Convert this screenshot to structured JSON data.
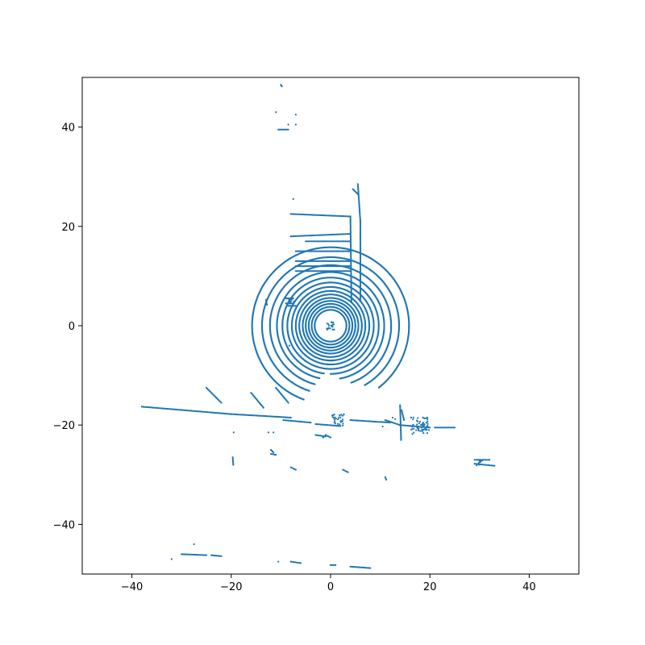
{
  "chart_data": {
    "type": "scatter",
    "title": "",
    "xlabel": "",
    "ylabel": "",
    "xlim": [
      -50,
      50
    ],
    "ylim": [
      -50,
      50
    ],
    "x_ticks": [
      -40,
      -20,
      0,
      20,
      40
    ],
    "y_ticks": [
      -40,
      -20,
      0,
      20,
      40
    ],
    "x_tick_labels": [
      "−40",
      "−20",
      "0",
      "20",
      "40"
    ],
    "y_tick_labels": [
      "−40",
      "−20",
      "0",
      "20",
      "40"
    ],
    "grid": false,
    "legend": "none",
    "point_color": "#1f77b4",
    "rings": [
      {
        "cx": 0,
        "cy": 0,
        "r": 3.2,
        "start": 0,
        "end": 360
      },
      {
        "cx": 0,
        "cy": 0,
        "r": 3.8,
        "start": 0,
        "end": 360
      },
      {
        "cx": 0,
        "cy": 0,
        "r": 4.4,
        "start": 0,
        "end": 360
      },
      {
        "cx": 0,
        "cy": 0,
        "r": 5.0,
        "start": 0,
        "end": 360
      },
      {
        "cx": 0,
        "cy": 0,
        "r": 5.6,
        "start": 0,
        "end": 360
      },
      {
        "cx": 0,
        "cy": 0,
        "r": 6.3,
        "start": 0,
        "end": 360
      },
      {
        "cx": 0,
        "cy": 0,
        "r": 7.0,
        "start": -95,
        "end": 275
      },
      {
        "cx": 0,
        "cy": 0,
        "r": 7.8,
        "start": -95,
        "end": 270
      },
      {
        "cx": 0,
        "cy": 0,
        "r": 8.7,
        "start": -95,
        "end": 265
      },
      {
        "cx": 0,
        "cy": 0,
        "r": 9.7,
        "start": -90,
        "end": 262
      },
      {
        "cx": 0,
        "cy": 0,
        "r": 10.8,
        "start": -80,
        "end": 258
      },
      {
        "cx": 0,
        "cy": 0,
        "r": 12.2,
        "start": -70,
        "end": 255
      },
      {
        "cx": 0,
        "cy": 0,
        "r": 13.8,
        "start": -60,
        "end": 252
      },
      {
        "cx": 0,
        "cy": 0,
        "r": 15.8,
        "start": -52,
        "end": 250
      }
    ],
    "segments": [
      [
        -38,
        -16.3,
        -20,
        -17.8
      ],
      [
        -20,
        -17.8,
        -13,
        -18.2
      ],
      [
        -13,
        -18.2,
        -8,
        -18.5
      ],
      [
        -25,
        -12.5,
        -22,
        -15.5
      ],
      [
        -16,
        -13.5,
        -13.5,
        -16.5
      ],
      [
        -11,
        -12.5,
        -8.5,
        -15.5
      ],
      [
        -9.5,
        -19,
        -4,
        -19.5
      ],
      [
        -3,
        -19.8,
        2,
        -20.2
      ],
      [
        4,
        -19,
        12,
        -19.5
      ],
      [
        11,
        -19,
        14,
        -20
      ],
      [
        14,
        -20,
        20,
        -20.5
      ],
      [
        21,
        -20.5,
        25,
        -20.5
      ],
      [
        14,
        -16,
        14.2,
        -23
      ],
      [
        14.3,
        -17,
        14.8,
        -19
      ],
      [
        -8,
        22.5,
        4,
        22
      ],
      [
        -8,
        18,
        4,
        18.5
      ],
      [
        -5,
        17,
        4,
        17
      ],
      [
        -7,
        15,
        4,
        15
      ],
      [
        -7,
        13,
        4,
        13
      ],
      [
        -7,
        12,
        4,
        12
      ],
      [
        -7,
        11,
        4,
        11
      ],
      [
        4,
        22,
        4.2,
        5
      ],
      [
        5.5,
        28.5,
        6,
        21
      ],
      [
        6,
        21,
        6,
        5
      ],
      [
        4.5,
        27.5,
        5.5,
        26.5
      ],
      [
        -9,
        5.5,
        -7.5,
        5.5
      ],
      [
        -9,
        4.5,
        -7.5,
        4.5
      ],
      [
        -8.5,
        4,
        -7,
        4
      ],
      [
        -13,
        5.2,
        -12.8,
        4.2
      ],
      [
        -10.5,
        39.5,
        -8.5,
        39.5
      ],
      [
        -10,
        48.5,
        -9.8,
        48.2
      ],
      [
        -1,
        -22,
        0,
        -22.5
      ],
      [
        -3,
        -22,
        -1,
        -22.3
      ],
      [
        -19.7,
        -26.5,
        -19.6,
        -28
      ],
      [
        29,
        -27,
        32,
        -27
      ],
      [
        29,
        -27.8,
        33,
        -28.2
      ],
      [
        -30,
        -46,
        -25,
        -46.2
      ],
      [
        -24,
        -46.2,
        -22,
        -46.4
      ],
      [
        -8,
        -47.5,
        -6,
        -47.8
      ],
      [
        4,
        -48.5,
        8,
        -48.8
      ],
      [
        0,
        -48.2,
        1,
        -48.2
      ],
      [
        -8,
        -28.5,
        -7,
        -29
      ],
      [
        2.5,
        -29,
        3.5,
        -29.5
      ],
      [
        11,
        -30.5,
        11.2,
        -31
      ],
      [
        -12,
        -25,
        -11.5,
        -25.5
      ],
      [
        -12,
        -25.8,
        -11,
        -26
      ]
    ],
    "clusters": [
      {
        "x": 18,
        "y": -20,
        "spread": 1.8,
        "n": 60
      },
      {
        "x": 1.5,
        "y": -19,
        "spread": 1.2,
        "n": 30
      },
      {
        "x": 0,
        "y": 0,
        "spread": 0.8,
        "n": 20
      },
      {
        "x": -8,
        "y": 5,
        "spread": 0.6,
        "n": 15
      },
      {
        "x": 30,
        "y": -27.5,
        "spread": 0.6,
        "n": 10
      }
    ],
    "points": [
      [
        -11,
        43
      ],
      [
        -8.5,
        40.5
      ],
      [
        -7,
        42.5
      ],
      [
        -7,
        40.5
      ],
      [
        -7.5,
        25.5
      ],
      [
        -32,
        -47
      ],
      [
        -27.5,
        -44
      ],
      [
        -19.5,
        -21.5
      ],
      [
        -12.5,
        -21.5
      ],
      [
        -11.5,
        -21.5
      ],
      [
        -10.5,
        -47.5
      ],
      [
        -1.5,
        -22.5
      ],
      [
        -7.5,
        -4.5
      ],
      [
        -8.3,
        -4
      ],
      [
        12.5,
        -18.5
      ],
      [
        13,
        -18.8
      ],
      [
        10.5,
        -20.3
      ]
    ]
  }
}
